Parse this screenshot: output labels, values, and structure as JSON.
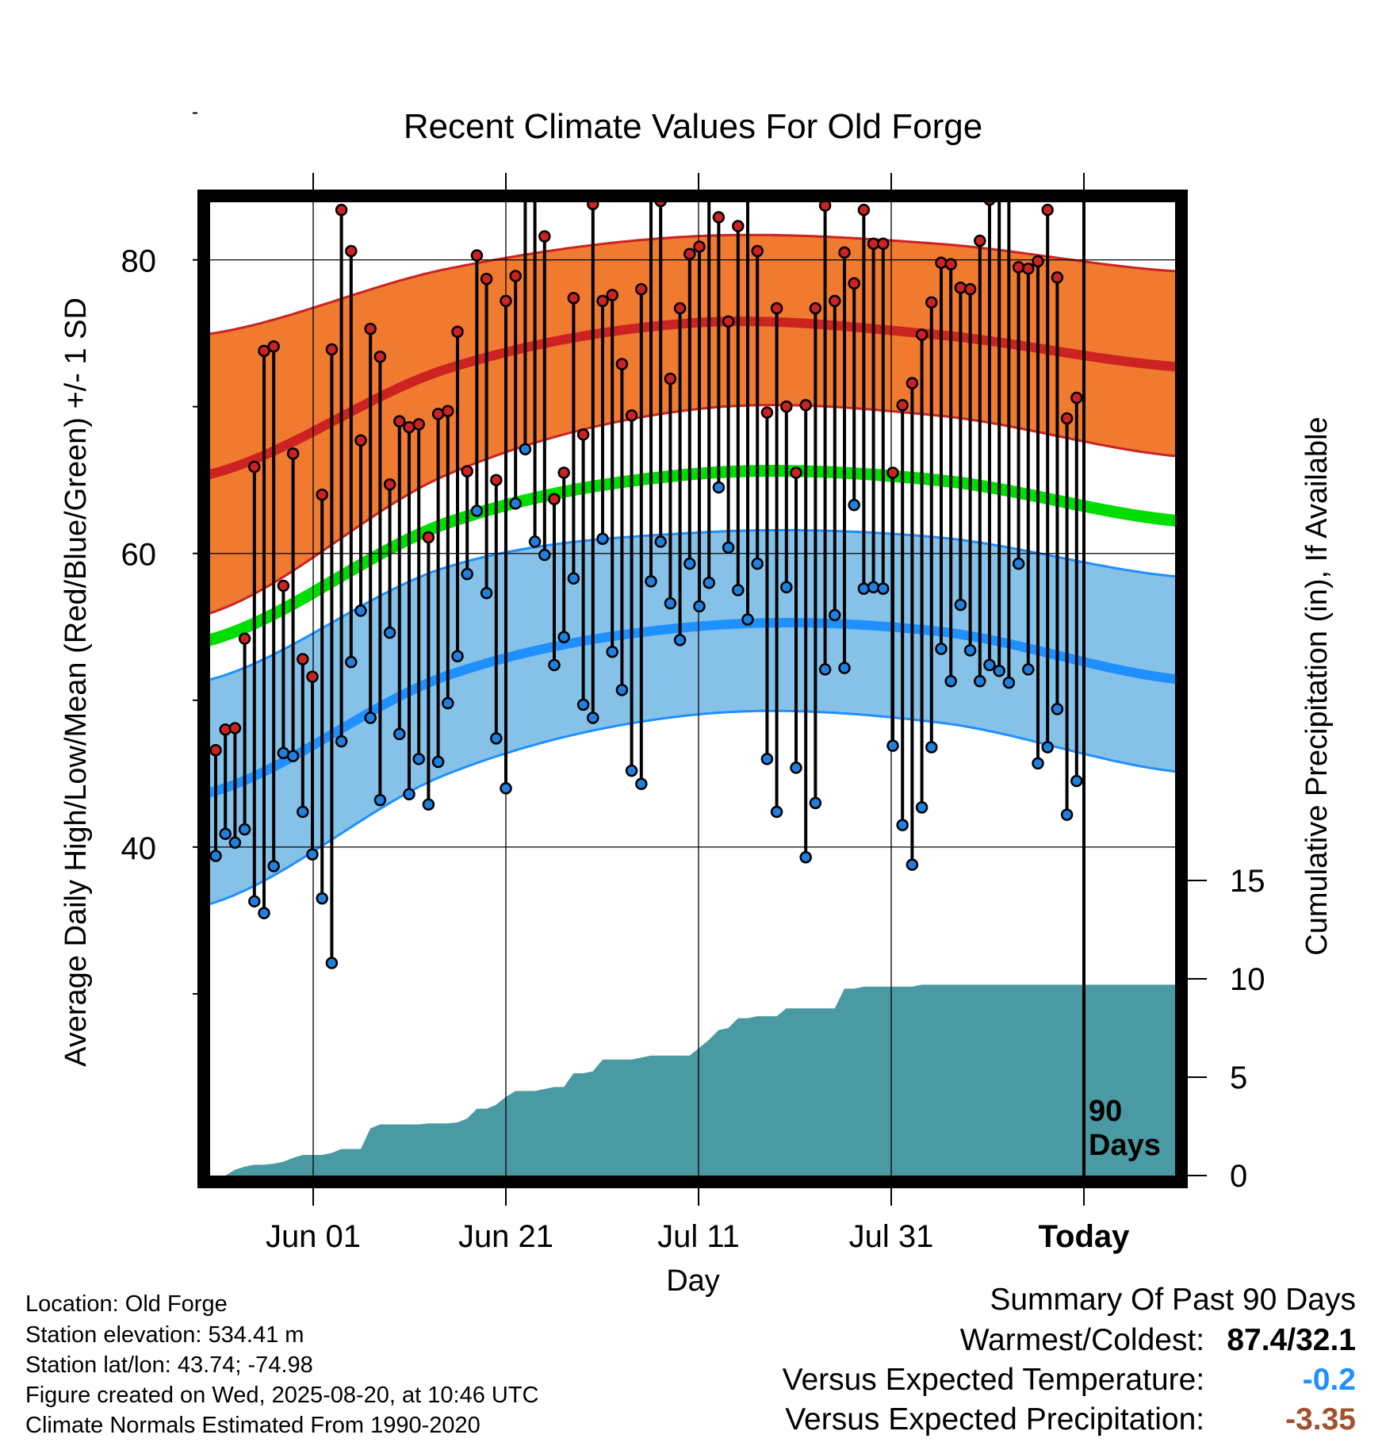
{
  "chart_data": {
    "type": "line",
    "title": "Recent Climate Values For Old Forge",
    "xlabel": "Day",
    "ylabel": "Average Daily High/Low/Mean (Red/Blue/Green) +/- 1 SD",
    "y2label": "Cumulative Precipitation (in), If Available",
    "x_tick_labels": [
      "Jun 01",
      "Jun 21",
      "Jul 11",
      "Jul 31",
      "Today"
    ],
    "y_ticks": [
      40,
      60,
      80
    ],
    "y2_ticks": [
      0,
      5,
      10,
      15
    ],
    "ylim": [
      18,
      95
    ],
    "y2lim": [
      0,
      15
    ],
    "period_label": "90\nDays",
    "normals": {
      "high_mean": [
        65.3,
        72.6,
        75.7,
        74.9,
        72.7
      ],
      "high_plus_sd": [
        74.9,
        79.4,
        81.6,
        81.1,
        79.2
      ],
      "high_minus_sd": [
        55.8,
        65.4,
        69.8,
        69.4,
        66.6
      ],
      "low_mean": [
        43.6,
        51.7,
        55.0,
        54.7,
        51.4
      ],
      "low_plus_sd": [
        51.3,
        59.1,
        61.4,
        61.1,
        58.4
      ],
      "low_minus_sd": [
        36.0,
        45.0,
        49.0,
        48.5,
        45.1
      ],
      "mean": [
        54.0,
        62.1,
        65.4,
        65.0,
        62.2
      ]
    },
    "daily_high": [
      46.6,
      48.0,
      48.1,
      54.2,
      65.9,
      73.8,
      74.1,
      57.8,
      66.8,
      52.8,
      51.6,
      64.0,
      73.9,
      83.4,
      80.6,
      67.7,
      75.3,
      73.4,
      64.7,
      69.0,
      68.6,
      68.8,
      61.1,
      69.5,
      69.7,
      75.1,
      65.6,
      80.3,
      78.7,
      65.0,
      77.2,
      78.9,
      87.4,
      86.7,
      81.6,
      63.7,
      65.5,
      77.4,
      68.1,
      83.8,
      77.2,
      77.6,
      72.9,
      69.4,
      78.0,
      84.8,
      84.0,
      71.9,
      76.7,
      80.4,
      80.9,
      84.8,
      82.9,
      75.8,
      82.3,
      86.1,
      80.6,
      69.6,
      76.7,
      70.0,
      65.5,
      70.1,
      76.7,
      83.7,
      77.2,
      80.5,
      78.4,
      83.4,
      81.1,
      81.1,
      65.5,
      70.1,
      71.6,
      74.9,
      77.1,
      79.8,
      79.7,
      78.1,
      78.0,
      81.3,
      84.1,
      84.7,
      86.0,
      79.5,
      79.4,
      79.9,
      83.4,
      78.8,
      69.2,
      70.6
    ],
    "daily_low": [
      39.4,
      40.9,
      40.3,
      41.2,
      36.3,
      35.5,
      38.7,
      46.4,
      46.2,
      42.4,
      39.5,
      36.5,
      32.1,
      47.2,
      52.6,
      56.1,
      48.8,
      43.2,
      54.6,
      47.7,
      43.6,
      46.0,
      42.9,
      45.8,
      49.8,
      53.0,
      58.6,
      62.9,
      57.3,
      47.4,
      44.0,
      63.4,
      67.1,
      60.8,
      59.9,
      52.4,
      54.3,
      58.3,
      49.7,
      48.8,
      61.0,
      53.3,
      50.7,
      45.2,
      44.3,
      58.1,
      60.8,
      56.6,
      54.1,
      59.3,
      56.4,
      58.0,
      64.5,
      60.4,
      57.5,
      55.5,
      59.3,
      46.0,
      42.4,
      57.7,
      45.4,
      39.3,
      43.0,
      52.1,
      55.8,
      52.2,
      63.3,
      57.6,
      57.7,
      57.6,
      46.9,
      41.5,
      38.8,
      42.7,
      46.8,
      53.5,
      51.3,
      56.5,
      53.4,
      51.3,
      52.4,
      52.0,
      51.2,
      59.3,
      52.1,
      45.7,
      46.8,
      49.4,
      42.2,
      44.5
    ],
    "cumulative_precip": [
      0.0,
      0.0,
      0.3,
      0.45,
      0.55,
      0.55,
      0.6,
      0.7,
      0.9,
      1.05,
      1.05,
      1.05,
      1.15,
      1.35,
      1.35,
      1.35,
      2.4,
      2.6,
      2.6,
      2.6,
      2.6,
      2.6,
      2.65,
      2.65,
      2.65,
      2.7,
      2.9,
      3.4,
      3.4,
      3.6,
      4.0,
      4.3,
      4.3,
      4.3,
      4.4,
      4.5,
      4.5,
      5.2,
      5.2,
      5.3,
      5.9,
      5.9,
      5.9,
      5.9,
      6.0,
      6.1,
      6.1,
      6.1,
      6.1,
      6.1,
      6.5,
      6.9,
      7.4,
      7.5,
      8.0,
      8.0,
      8.1,
      8.1,
      8.1,
      8.5,
      8.5,
      8.5,
      8.5,
      8.5,
      8.5,
      9.5,
      9.5,
      9.6,
      9.6,
      9.6,
      9.6,
      9.6,
      9.6,
      9.7,
      9.7,
      9.7,
      9.7,
      9.7,
      9.7,
      9.7,
      9.7,
      9.7,
      9.7,
      9.7,
      9.7,
      9.7,
      9.7,
      9.7,
      9.7,
      9.7
    ],
    "colors": {
      "high_band": "#f07a30",
      "high_line": "#cc2222",
      "low_band": "#86c2e8",
      "low_line": "#1e90ff",
      "mean_line": "#00dd00",
      "precip": "#4a9aa4",
      "high_dot": "#cc2222",
      "low_dot": "#2080e0",
      "frame": "#000000"
    }
  },
  "footer": {
    "location": "Location: Old Forge",
    "elevation": "Station elevation: 534.41 m",
    "latlon": "Station lat/lon: 43.74; -74.98",
    "created": "Figure created on Wed, 2025-08-20, at 10:46 UTC",
    "normals": "Climate Normals Estimated From 1990-2020"
  },
  "summary": {
    "heading": "Summary Of Past 90 Days",
    "warm_cold_label": "Warmest/Coldest:",
    "warm_cold_value": "87.4/32.1",
    "temp_label": "Versus Expected Temperature:",
    "temp_value": "-0.2",
    "temp_color": "#1e90ff",
    "precip_label": "Versus Expected Precipitation:",
    "precip_value": "-3.35",
    "precip_color": "#a0522d"
  }
}
